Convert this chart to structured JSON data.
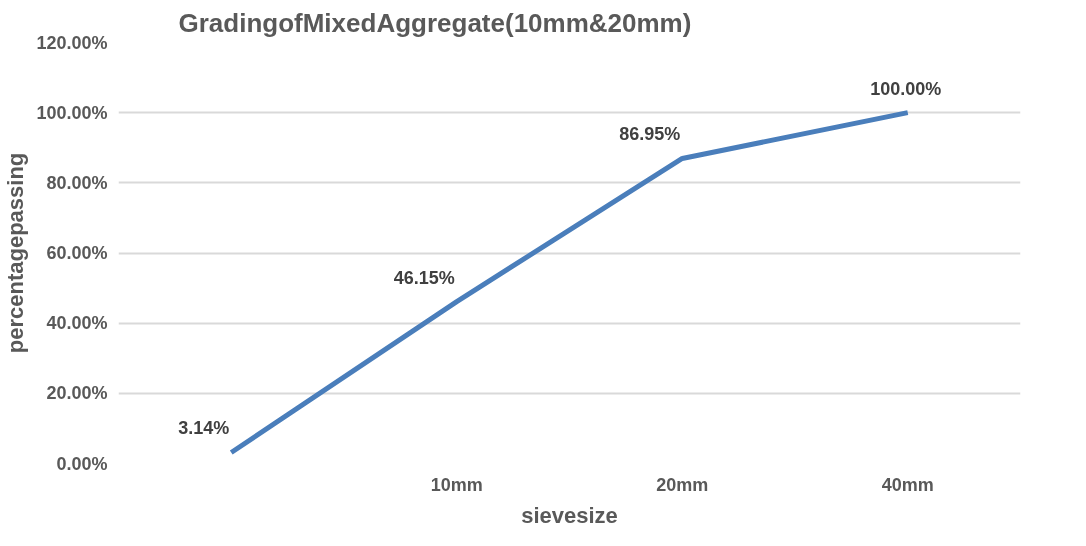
{
  "chart_data": {
    "type": "line",
    "title": "GradingofMixedAggregate(10mm&20mm)",
    "xlabel": "sievesize",
    "ylabel": "percentagepassing",
    "categories": [
      null,
      "10mm",
      "20mm",
      "40mm"
    ],
    "series": [
      {
        "color": "#4a7ebb",
        "values": [
          3.14,
          46.15,
          86.95,
          100
        ],
        "value_labels": [
          "3.14%",
          "46.15%",
          "86.95%",
          "100.00%"
        ]
      }
    ],
    "ylim": [
      0,
      120
    ],
    "yticks": [
      {
        "value": 0,
        "label": "0.00%"
      },
      {
        "value": 20,
        "label": "20.00%"
      },
      {
        "value": 40,
        "label": "40.00%"
      },
      {
        "value": 60,
        "label": "60.00%"
      },
      {
        "value": 80,
        "label": "80.00%"
      },
      {
        "value": 100,
        "label": "100.00%"
      },
      {
        "value": 120,
        "label": "120.00%"
      }
    ],
    "grid": "y",
    "marker": "none",
    "line_style": "solid"
  }
}
